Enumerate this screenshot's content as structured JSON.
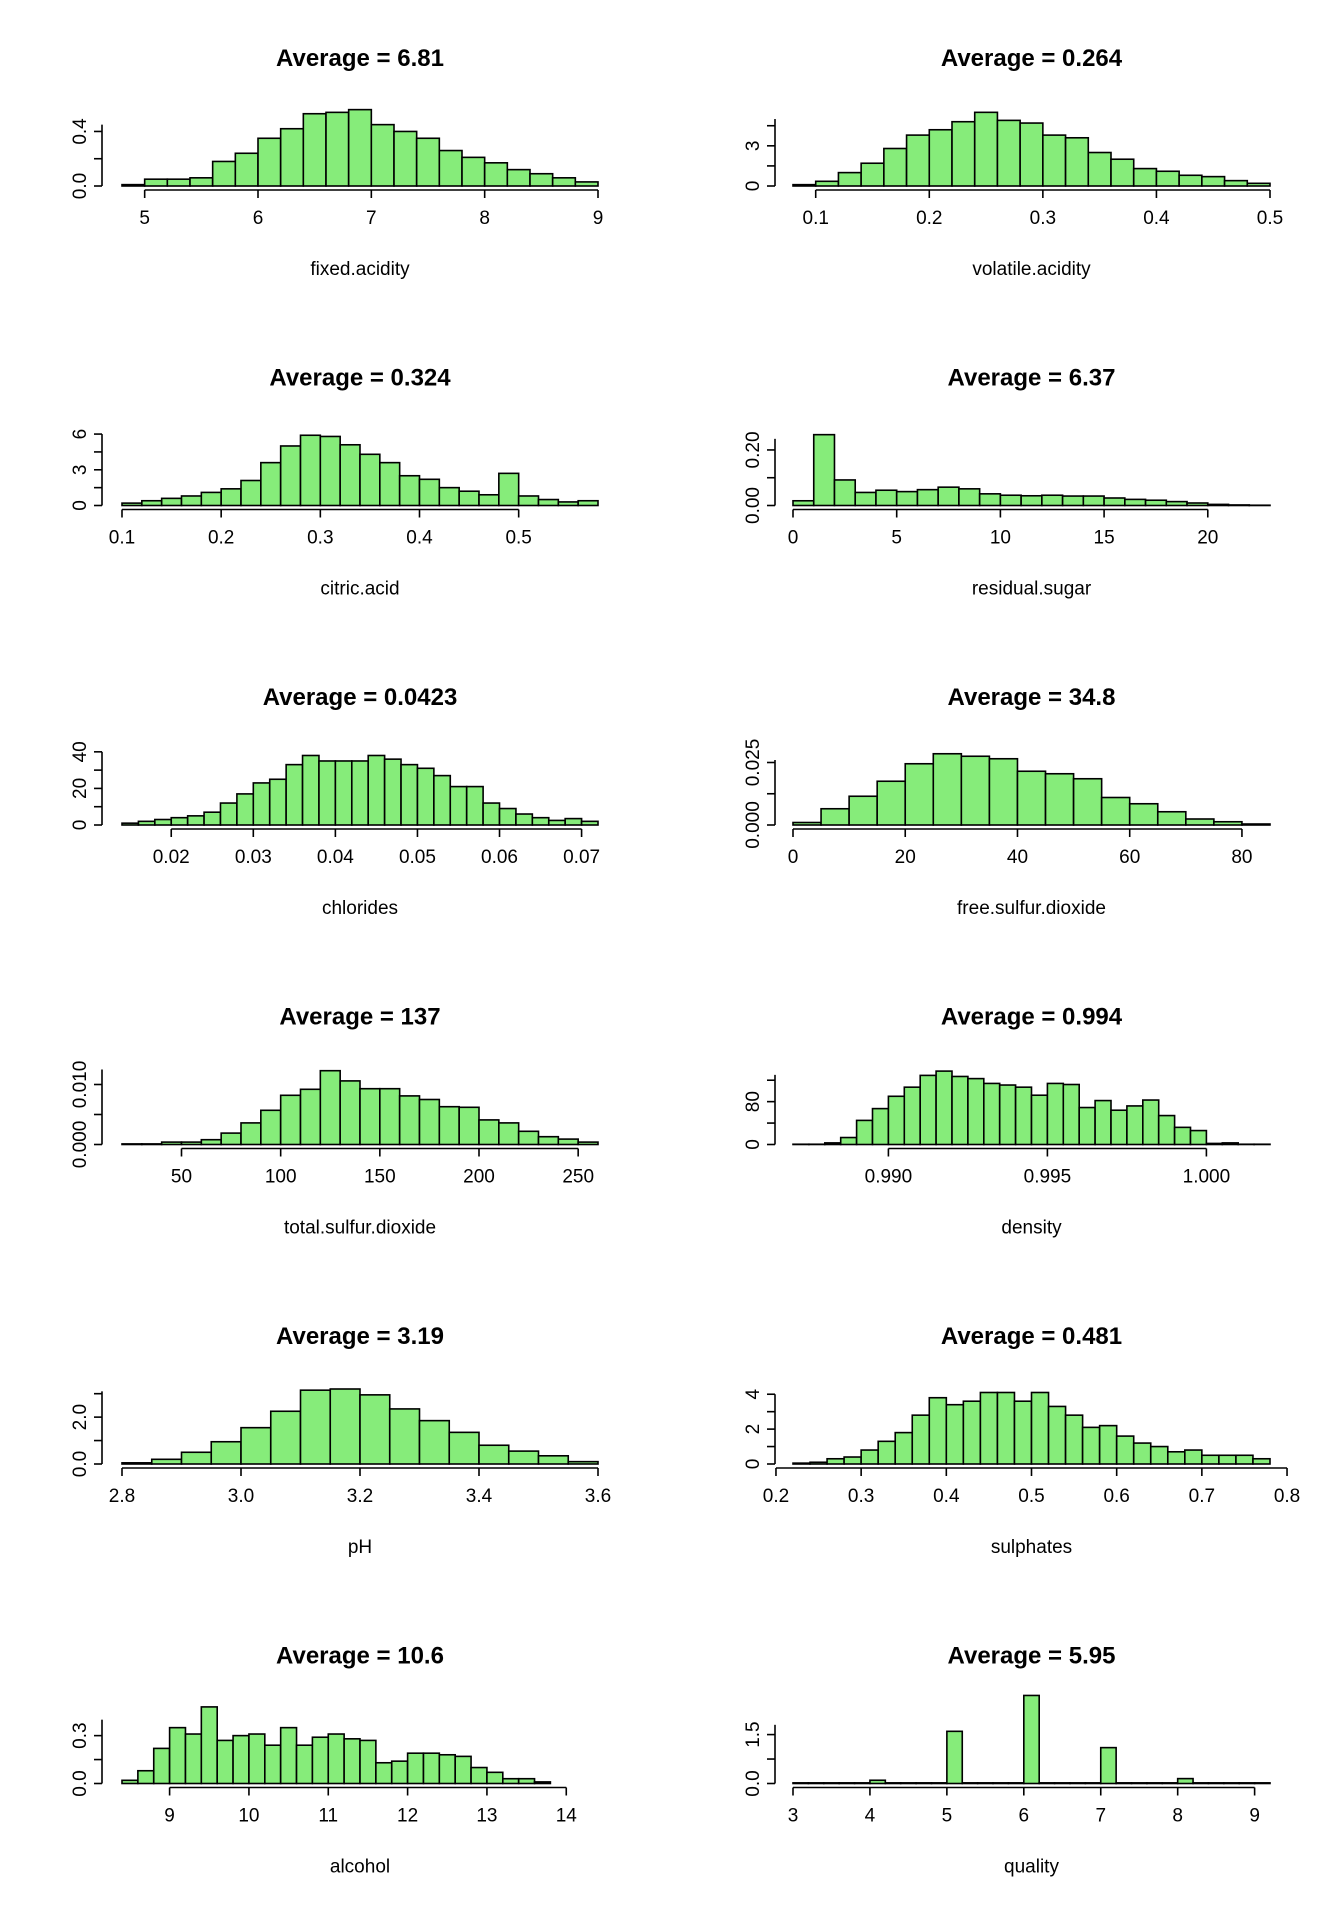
{
  "colors": {
    "bar_fill": "#86ec7a",
    "axis": "#000000",
    "background": "#ffffff"
  },
  "chart_data": [
    {
      "type": "bar",
      "title": "Average = 6.81",
      "xlabel": "fixed.acidity",
      "x_range": [
        4.8,
        9.0
      ],
      "xticks": [
        "5",
        "6",
        "7",
        "8",
        "9"
      ],
      "xtick_values": [
        5,
        6,
        7,
        8,
        9
      ],
      "ylim": [
        0,
        0.55
      ],
      "yticks": [
        "0.0",
        "0.4"
      ],
      "ytick_values": [
        0,
        0.4
      ],
      "y_axis_max": 0.45,
      "bin_edges": [
        4.8,
        5.0,
        5.2,
        5.4,
        5.6,
        5.8,
        6.0,
        6.2,
        6.4,
        6.6,
        6.8,
        7.0,
        7.2,
        7.4,
        7.6,
        7.8,
        8.0,
        8.2,
        8.4,
        8.6,
        8.8,
        9.0
      ],
      "values": [
        0.01,
        0.05,
        0.05,
        0.06,
        0.18,
        0.24,
        0.35,
        0.42,
        0.53,
        0.54,
        0.56,
        0.45,
        0.4,
        0.35,
        0.26,
        0.21,
        0.17,
        0.12,
        0.09,
        0.06,
        0.03
      ]
    },
    {
      "type": "bar",
      "title": "Average = 0.264",
      "xlabel": "volatile.acidity",
      "x_range": [
        0.08,
        0.5
      ],
      "xticks": [
        "0.1",
        "0.2",
        "0.3",
        "0.4",
        "0.5"
      ],
      "xtick_values": [
        0.1,
        0.2,
        0.3,
        0.4,
        0.5
      ],
      "ylim": [
        0,
        5.6
      ],
      "yticks": [
        "0",
        "3"
      ],
      "ytick_values": [
        0,
        3
      ],
      "y_axis_max": 5,
      "bin_edges": [
        0.08,
        0.1,
        0.12,
        0.14,
        0.16,
        0.18,
        0.2,
        0.22,
        0.24,
        0.26,
        0.28,
        0.3,
        0.32,
        0.34,
        0.36,
        0.38,
        0.4,
        0.42,
        0.44,
        0.46,
        0.48,
        0.5
      ],
      "values": [
        0.1,
        0.35,
        1.0,
        1.7,
        2.8,
        3.8,
        4.2,
        4.8,
        5.5,
        4.9,
        4.7,
        3.8,
        3.6,
        2.5,
        2.0,
        1.3,
        1.1,
        0.8,
        0.7,
        0.4,
        0.2
      ]
    },
    {
      "type": "bar",
      "title": "Average = 0.324",
      "xlabel": "citric.acid",
      "x_range": [
        0.1,
        0.58
      ],
      "xticks": [
        "0.1",
        "0.2",
        "0.3",
        "0.4",
        "0.5"
      ],
      "xtick_values": [
        0.1,
        0.2,
        0.3,
        0.4,
        0.5
      ],
      "ylim": [
        0,
        6.3
      ],
      "yticks": [
        "0",
        "3",
        "6"
      ],
      "ytick_values": [
        0,
        3,
        6
      ],
      "y_axis_max": 6,
      "bin_edges": [
        0.1,
        0.12,
        0.14,
        0.16,
        0.18,
        0.2,
        0.22,
        0.24,
        0.26,
        0.28,
        0.3,
        0.32,
        0.34,
        0.36,
        0.38,
        0.4,
        0.42,
        0.44,
        0.46,
        0.48,
        0.5,
        0.52,
        0.54,
        0.56,
        0.58
      ],
      "values": [
        0.2,
        0.4,
        0.6,
        0.8,
        1.1,
        1.4,
        2.1,
        3.6,
        5.0,
        5.9,
        5.8,
        5.1,
        4.3,
        3.6,
        2.5,
        2.2,
        1.5,
        1.2,
        0.9,
        2.7,
        0.8,
        0.5,
        0.3,
        0.4
      ]
    },
    {
      "type": "bar",
      "title": "Average = 6.37",
      "xlabel": "residual.sugar",
      "x_range": [
        0,
        23
      ],
      "xticks": [
        "0",
        "5",
        "10",
        "15",
        "20"
      ],
      "xtick_values": [
        0,
        5,
        10,
        15,
        20
      ],
      "ylim": [
        0,
        0.27
      ],
      "yticks": [
        "0.00",
        "0.20"
      ],
      "ytick_values": [
        0,
        0.2
      ],
      "y_axis_max": 0.24,
      "bin_edges": [
        0,
        1,
        2,
        3,
        4,
        5,
        6,
        7,
        8,
        9,
        10,
        11,
        12,
        13,
        14,
        15,
        16,
        17,
        18,
        19,
        20,
        21,
        22,
        23
      ],
      "values": [
        0.017,
        0.255,
        0.092,
        0.047,
        0.055,
        0.05,
        0.057,
        0.066,
        0.06,
        0.042,
        0.037,
        0.035,
        0.037,
        0.034,
        0.034,
        0.027,
        0.022,
        0.019,
        0.014,
        0.009,
        0.004,
        0.002,
        0.001
      ]
    },
    {
      "type": "bar",
      "title": "Average = 0.0423",
      "xlabel": "chlorides",
      "x_range": [
        0.014,
        0.072
      ],
      "xticks": [
        "0.02",
        "0.03",
        "0.04",
        "0.05",
        "0.06",
        "0.07"
      ],
      "xtick_values": [
        0.02,
        0.03,
        0.04,
        0.05,
        0.06,
        0.07
      ],
      "ylim": [
        0,
        41
      ],
      "yticks": [
        "0",
        "20",
        "40"
      ],
      "ytick_values": [
        0,
        20,
        40
      ],
      "y_axis_max": 40,
      "bin_edges": [
        0.014,
        0.016,
        0.018,
        0.02,
        0.022,
        0.024,
        0.026,
        0.028,
        0.03,
        0.032,
        0.034,
        0.036,
        0.038,
        0.04,
        0.042,
        0.044,
        0.046,
        0.048,
        0.05,
        0.052,
        0.054,
        0.056,
        0.058,
        0.06,
        0.062,
        0.064,
        0.066,
        0.068,
        0.07,
        0.072
      ],
      "values": [
        1,
        2,
        3,
        4,
        5,
        7,
        12,
        17,
        23,
        25,
        33,
        38,
        35,
        35,
        35,
        38,
        36,
        33,
        31,
        27,
        21,
        21,
        12,
        9,
        6,
        4,
        2.5,
        3.5,
        2
      ]
    },
    {
      "type": "bar",
      "title": "Average = 34.8",
      "xlabel": "free.sulfur.dioxide",
      "x_range": [
        0,
        85
      ],
      "xticks": [
        "0",
        "20",
        "40",
        "60",
        "80"
      ],
      "xtick_values": [
        0,
        20,
        40,
        60,
        80
      ],
      "ylim": [
        0,
        0.03
      ],
      "yticks": [
        "0.000",
        "0.025"
      ],
      "ytick_values": [
        0,
        0.025
      ],
      "y_axis_max": 0.026,
      "bin_edges": [
        0,
        5,
        10,
        15,
        20,
        25,
        30,
        35,
        40,
        45,
        50,
        55,
        60,
        65,
        70,
        75,
        80,
        85
      ],
      "values": [
        0.001,
        0.0065,
        0.0115,
        0.0175,
        0.0245,
        0.0285,
        0.0275,
        0.0265,
        0.0215,
        0.0205,
        0.0185,
        0.011,
        0.0085,
        0.0053,
        0.0024,
        0.0013,
        0.0004
      ]
    },
    {
      "type": "bar",
      "title": "Average = 137",
      "xlabel": "total.sulfur.dioxide",
      "x_range": [
        20,
        260
      ],
      "xticks": [
        "50",
        "100",
        "150",
        "200",
        "250"
      ],
      "xtick_values": [
        50,
        100,
        150,
        200,
        250
      ],
      "ylim": [
        0,
        0.0125
      ],
      "yticks": [
        "0.000",
        "0.010"
      ],
      "ytick_values": [
        0,
        0.01
      ],
      "y_axis_max": 0.0125,
      "bin_edges": [
        20,
        30,
        40,
        50,
        60,
        70,
        80,
        90,
        100,
        110,
        120,
        130,
        140,
        150,
        160,
        170,
        180,
        190,
        200,
        210,
        220,
        230,
        240,
        250,
        260
      ],
      "values": [
        0.0001,
        0.0001,
        0.0004,
        0.0004,
        0.0008,
        0.0019,
        0.0036,
        0.0057,
        0.0082,
        0.0092,
        0.0123,
        0.0106,
        0.0093,
        0.0093,
        0.0081,
        0.0075,
        0.0063,
        0.0062,
        0.0041,
        0.0036,
        0.0022,
        0.0013,
        0.0009,
        0.0004
      ]
    },
    {
      "type": "bar",
      "title": "Average = 0.994",
      "xlabel": "density",
      "x_range": [
        0.987,
        1.002
      ],
      "xticks": [
        "0.990",
        "0.995",
        "1.000"
      ],
      "xtick_values": [
        0.99,
        0.995,
        1.0
      ],
      "ylim": [
        0,
        140
      ],
      "yticks": [
        "0",
        "80"
      ],
      "ytick_values": [
        0,
        80
      ],
      "y_axis_max": 130,
      "bin_edges": [
        0.987,
        0.9875,
        0.988,
        0.9885,
        0.989,
        0.9895,
        0.99,
        0.9905,
        0.991,
        0.9915,
        0.992,
        0.9925,
        0.993,
        0.9935,
        0.994,
        0.9945,
        0.995,
        0.9955,
        0.996,
        0.9965,
        0.997,
        0.9975,
        0.998,
        0.9985,
        0.999,
        0.9995,
        1.0,
        1.0005,
        1.001,
        1.0015,
        1.002
      ],
      "values": [
        0.5,
        0.5,
        3,
        13,
        45,
        67,
        90,
        107,
        129,
        137,
        127,
        123,
        114,
        111,
        107,
        92,
        114,
        112,
        69,
        82,
        64,
        72,
        83,
        54,
        32,
        26,
        2,
        3,
        0.5,
        0.5
      ]
    },
    {
      "type": "bar",
      "title": "Average = 3.19",
      "xlabel": "pH",
      "x_range": [
        2.8,
        3.6
      ],
      "xticks": [
        "2.8",
        "3.0",
        "3.2",
        "3.4",
        "3.6"
      ],
      "xtick_values": [
        2.8,
        3.0,
        3.2,
        3.4,
        3.6
      ],
      "ylim": [
        0,
        3.2
      ],
      "yticks": [
        "0.0",
        "2.0"
      ],
      "ytick_values": [
        0,
        2.0
      ],
      "y_axis_max": 3.1,
      "bin_edges": [
        2.8,
        2.85,
        2.9,
        2.95,
        3.0,
        3.05,
        3.1,
        3.15,
        3.2,
        3.25,
        3.3,
        3.35,
        3.4,
        3.45,
        3.5,
        3.55,
        3.6
      ],
      "values": [
        0.05,
        0.2,
        0.5,
        0.95,
        1.55,
        2.25,
        3.15,
        3.2,
        2.95,
        2.35,
        1.85,
        1.35,
        0.8,
        0.55,
        0.35,
        0.1
      ]
    },
    {
      "type": "bar",
      "title": "Average = 0.481",
      "xlabel": "sulphates",
      "x_range": [
        0.22,
        0.78
      ],
      "xticks": [
        "0.2",
        "0.3",
        "0.4",
        "0.5",
        "0.6",
        "0.7",
        "0.8"
      ],
      "xtick_values": [
        0.2,
        0.3,
        0.4,
        0.5,
        0.6,
        0.7,
        0.8
      ],
      "ylim": [
        0,
        4.3
      ],
      "yticks": [
        "0",
        "2",
        "4"
      ],
      "ytick_values": [
        0,
        2,
        4
      ],
      "y_axis_max": 4,
      "bin_edges": [
        0.22,
        0.24,
        0.26,
        0.28,
        0.3,
        0.32,
        0.34,
        0.36,
        0.38,
        0.4,
        0.42,
        0.44,
        0.46,
        0.48,
        0.5,
        0.52,
        0.54,
        0.56,
        0.58,
        0.6,
        0.62,
        0.64,
        0.66,
        0.68,
        0.7,
        0.72,
        0.74,
        0.76,
        0.78
      ],
      "values": [
        0.05,
        0.1,
        0.3,
        0.4,
        0.8,
        1.3,
        1.8,
        2.8,
        3.8,
        3.4,
        3.6,
        4.1,
        4.1,
        3.6,
        4.1,
        3.3,
        2.8,
        2.1,
        2.2,
        1.6,
        1.2,
        1.0,
        0.7,
        0.8,
        0.5,
        0.5,
        0.5,
        0.3
      ]
    },
    {
      "type": "bar",
      "title": "Average = 10.6",
      "xlabel": "alcohol",
      "x_range": [
        8.4,
        14.4
      ],
      "xticks": [
        "9",
        "10",
        "11",
        "12",
        "13",
        "14"
      ],
      "xtick_values": [
        9,
        10,
        11,
        12,
        13,
        14
      ],
      "ylim": [
        0,
        0.47
      ],
      "yticks": [
        "0.0",
        "0.3"
      ],
      "ytick_values": [
        0,
        0.3
      ],
      "y_axis_max": 0.4,
      "bin_edges": [
        8.4,
        8.6,
        8.8,
        9.0,
        9.2,
        9.4,
        9.6,
        9.8,
        10.0,
        10.2,
        10.4,
        10.6,
        10.8,
        11.0,
        11.2,
        11.4,
        11.6,
        11.8,
        12.0,
        12.2,
        12.4,
        12.6,
        12.8,
        13.0,
        13.2,
        13.4,
        13.6,
        13.8,
        14.0,
        14.2,
        14.4
      ],
      "values": [
        0.02,
        0.08,
        0.22,
        0.35,
        0.31,
        0.48,
        0.27,
        0.3,
        0.31,
        0.24,
        0.35,
        0.24,
        0.29,
        0.31,
        0.28,
        0.27,
        0.13,
        0.14,
        0.19,
        0.19,
        0.18,
        0.17,
        0.1,
        0.07,
        0.03,
        0.03,
        0.01,
        0,
        0,
        0
      ]
    },
    {
      "type": "bar",
      "title": "Average = 5.95",
      "xlabel": "quality",
      "x_range": [
        3,
        9.2
      ],
      "xticks": [
        "3",
        "4",
        "5",
        "6",
        "7",
        "8",
        "9"
      ],
      "xtick_values": [
        3,
        4,
        5,
        6,
        7,
        8,
        9
      ],
      "ylim": [
        0,
        2.3
      ],
      "yticks": [
        "0.0",
        "1.5"
      ],
      "ytick_values": [
        0,
        1.5
      ],
      "y_axis_max": 1.8,
      "bin_edges": [
        3,
        3.2,
        3.4,
        3.6,
        3.8,
        4.0,
        4.2,
        4.4,
        4.6,
        4.8,
        5.0,
        5.2,
        5.4,
        5.6,
        5.8,
        6.0,
        6.2,
        6.4,
        6.6,
        6.8,
        7.0,
        7.2,
        7.4,
        7.6,
        7.8,
        8.0,
        8.2,
        8.4,
        8.6,
        8.8,
        9.0,
        9.2
      ],
      "values": [
        0.02,
        0.02,
        0.02,
        0.02,
        0.02,
        0.1,
        0.02,
        0.02,
        0.02,
        0.02,
        1.6,
        0.02,
        0.02,
        0.02,
        0.02,
        2.7,
        0.02,
        0.02,
        0.02,
        0.02,
        1.1,
        0.02,
        0.02,
        0.02,
        0.02,
        0.15,
        0.02,
        0.02,
        0.02,
        0.02,
        0.02
      ]
    }
  ]
}
